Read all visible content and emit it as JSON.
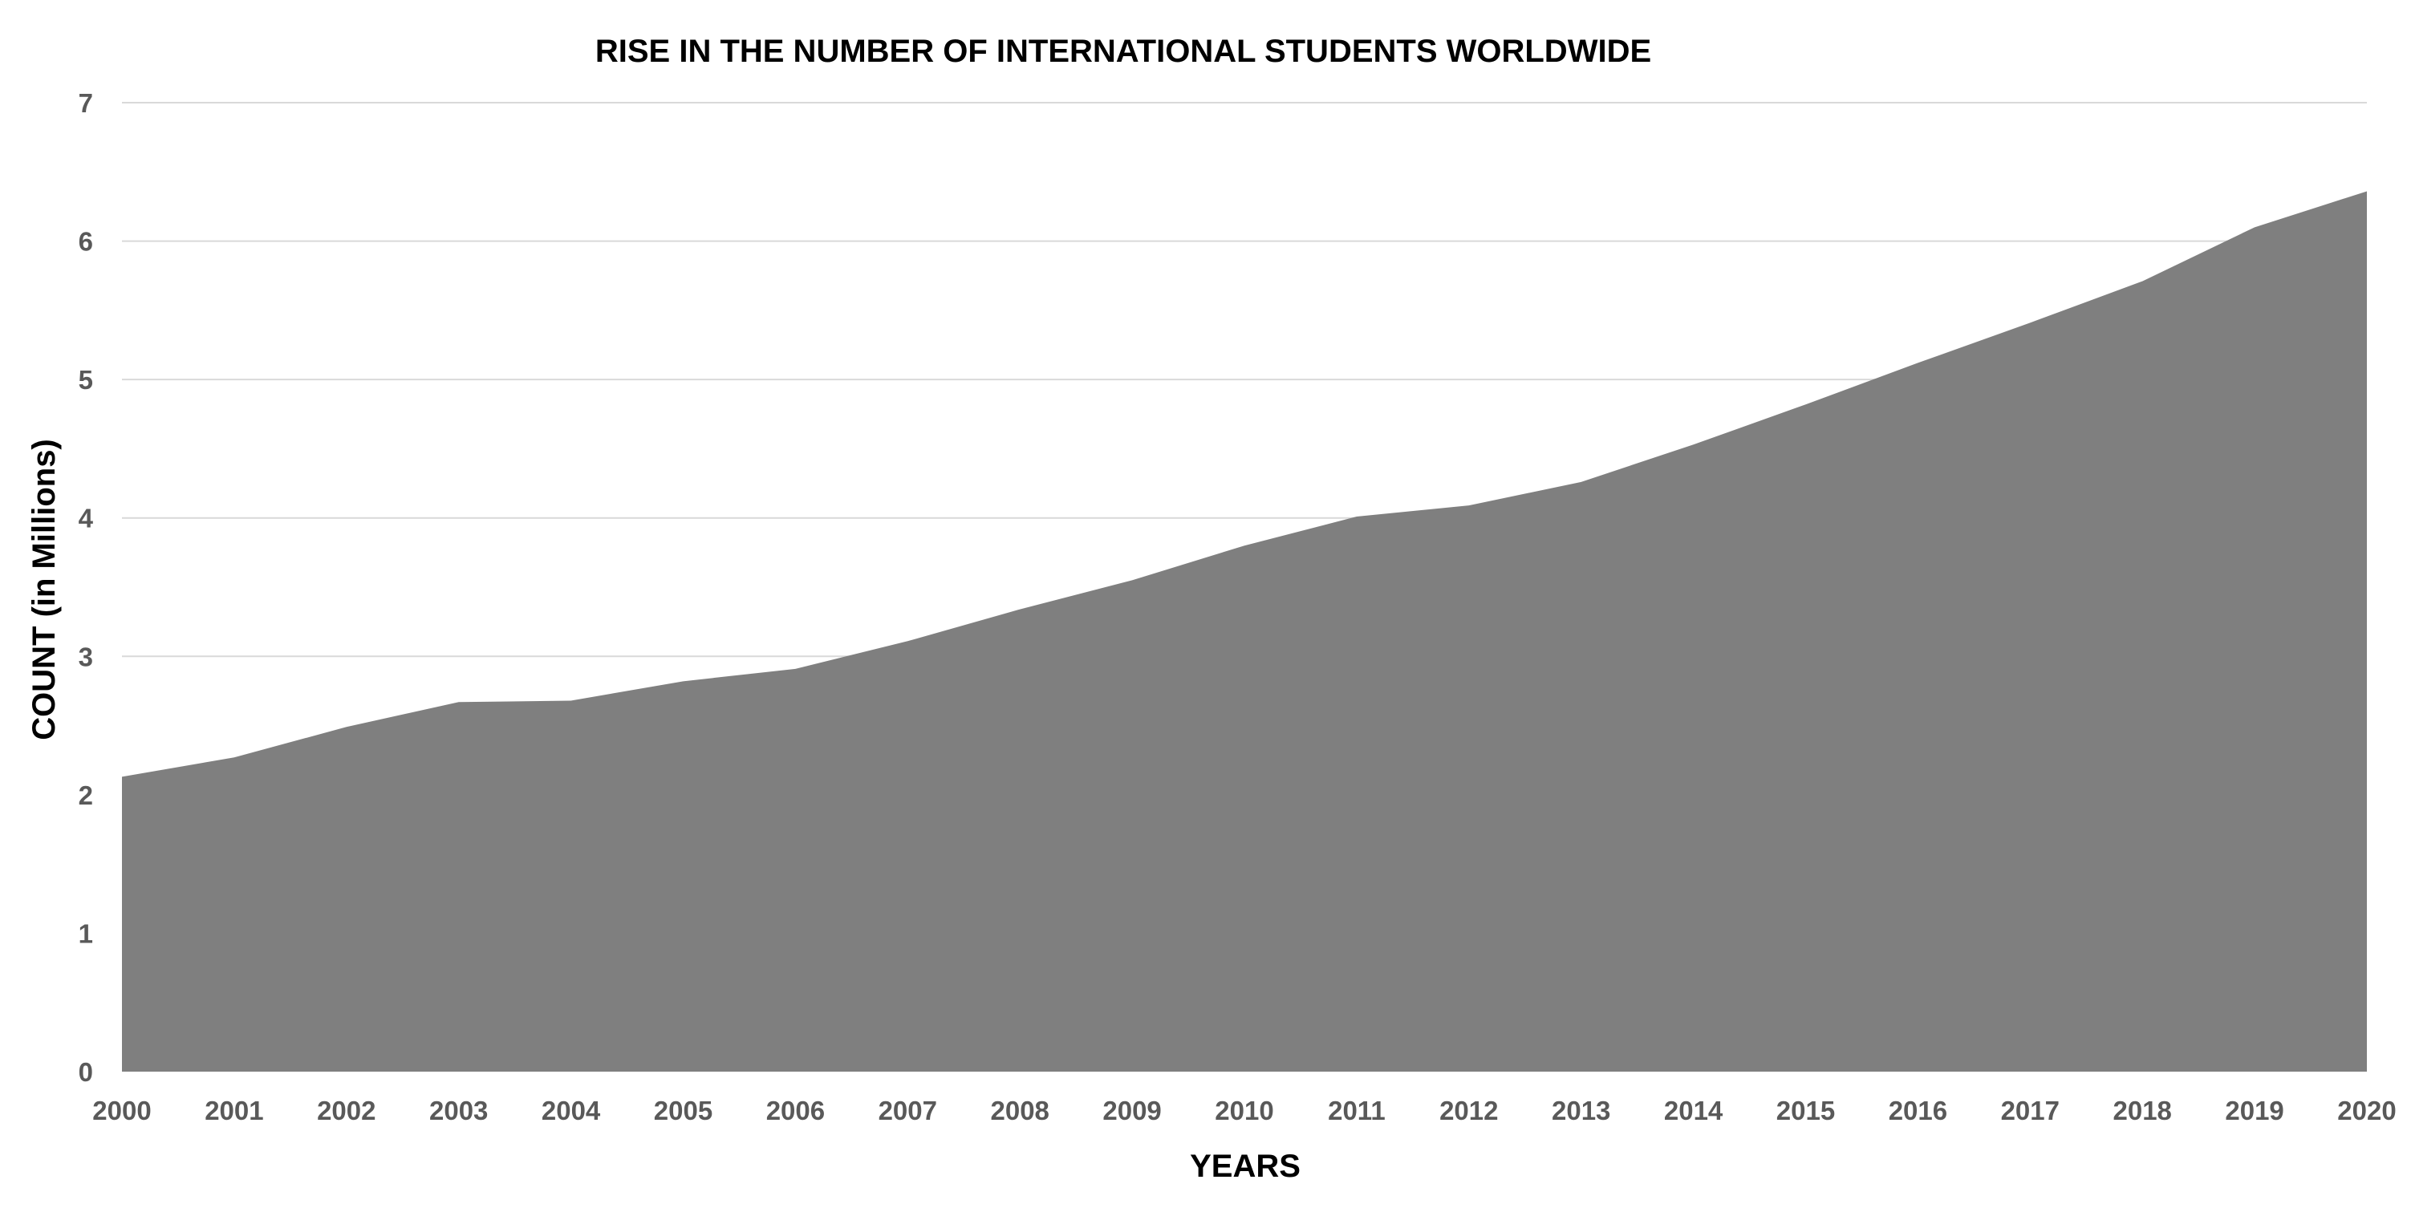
{
  "chart_data": {
    "type": "area",
    "title": "RISE IN THE NUMBER OF INTERNATIONAL STUDENTS WORLDWIDE",
    "xlabel": "YEARS",
    "ylabel": "COUNT (in Millions)",
    "x": [
      "2000",
      "2001",
      "2002",
      "2003",
      "2004",
      "2005",
      "2006",
      "2007",
      "2008",
      "2009",
      "2010",
      "2011",
      "2012",
      "2013",
      "2014",
      "2015",
      "2016",
      "2017",
      "2018",
      "2019",
      "2020"
    ],
    "series": [
      {
        "values": [
          2.13,
          2.27,
          2.49,
          2.67,
          2.68,
          2.82,
          2.91,
          3.11,
          3.34,
          3.55,
          3.8,
          4.01,
          4.09,
          4.26,
          4.53,
          4.82,
          5.12,
          5.41,
          5.71,
          6.1,
          6.36
        ]
      }
    ],
    "ylim": [
      0,
      7
    ],
    "yticks": [
      "0",
      "1",
      "2",
      "3",
      "4",
      "5",
      "6",
      "7"
    ],
    "grid": true,
    "legend": "none",
    "colors": {
      "area": "#7f7f7f",
      "grid": "#d9d9d9",
      "tick": "#595959"
    }
  }
}
